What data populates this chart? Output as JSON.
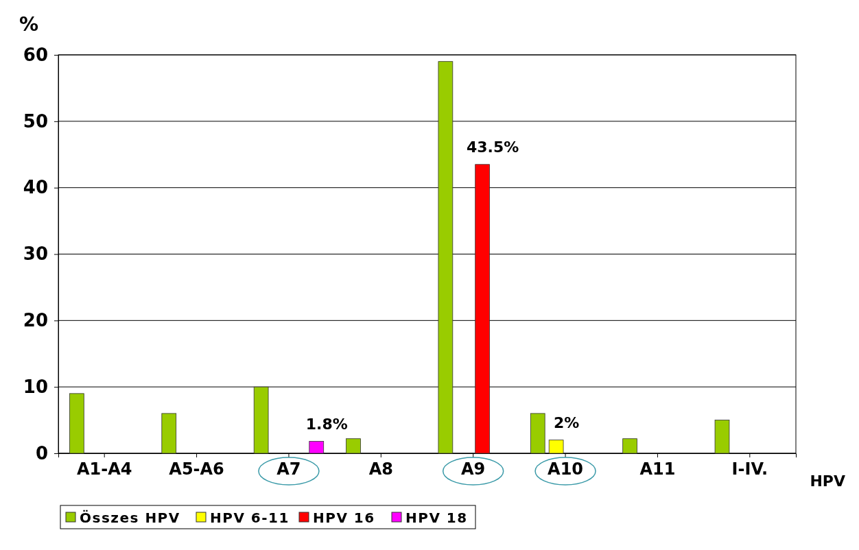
{
  "chart_data": {
    "type": "bar",
    "ylabel": "%",
    "xlabel": "HPV",
    "categories": [
      "A1-A4",
      "A5-A6",
      "A7",
      "A8",
      "A9",
      "A10",
      "A11",
      "I-IV."
    ],
    "series": [
      {
        "name": "Összes HPV",
        "color": "#99cc00",
        "values": [
          9,
          6,
          10,
          2.2,
          59,
          6,
          2.2,
          5
        ]
      },
      {
        "name": "HPV 6-11",
        "color": "#ffff00",
        "values": [
          0,
          0,
          0,
          0,
          0,
          2,
          0,
          0
        ],
        "value_labels": [
          null,
          null,
          null,
          null,
          null,
          "2%",
          null,
          null
        ]
      },
      {
        "name": "HPV 16",
        "color": "#ff0000",
        "values": [
          0,
          0,
          0,
          0,
          43.5,
          0,
          0,
          0
        ],
        "value_labels": [
          null,
          null,
          null,
          null,
          "43.5%",
          null,
          null,
          null
        ]
      },
      {
        "name": "HPV 18",
        "color": "#ff00ff",
        "values": [
          0,
          null,
          1.8,
          0,
          0,
          0,
          0,
          0
        ],
        "value_labels": [
          null,
          null,
          "1.8%",
          null,
          null,
          null,
          null,
          null
        ]
      }
    ],
    "ylim": [
      0,
      60
    ],
    "yticks": [
      0,
      10,
      20,
      30,
      40,
      50,
      60
    ],
    "grid": "y",
    "legend": "bottom left"
  }
}
